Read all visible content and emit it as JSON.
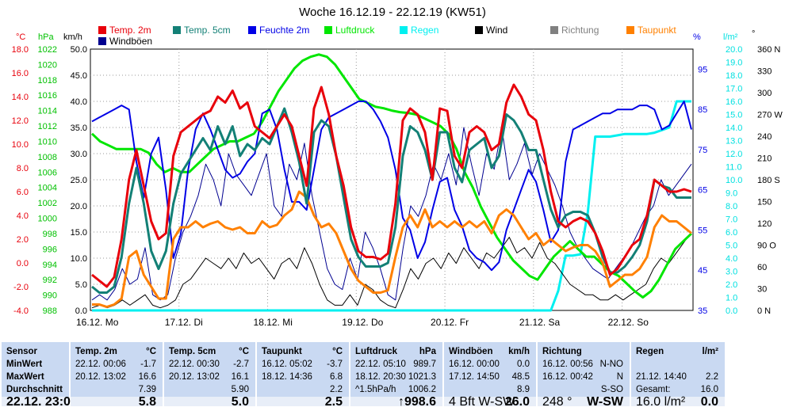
{
  "chart_data": {
    "type": "line",
    "title": "Woche 16.12.19 - 22.12.19 (KW51)",
    "legend": [
      {
        "name": "Temp. 2m",
        "color": "#e8000b"
      },
      {
        "name": "Temp. 5cm",
        "color": "#138076"
      },
      {
        "name": "Feuchte 2m",
        "color": "#0000e6"
      },
      {
        "name": "Luftdruck",
        "color": "#00e600"
      },
      {
        "name": "Regen",
        "color": "#00f0f0"
      },
      {
        "name": "Wind",
        "color": "#000000"
      },
      {
        "name": "Richtung",
        "color": "#808080"
      },
      {
        "name": "Taupunkt",
        "color": "#ff8000"
      },
      {
        "name": "Windböen",
        "color": "#000090"
      }
    ],
    "xlabels": [
      "16.12. Mo",
      "17.12. Di",
      "18.12. Mi",
      "19.12. Do",
      "20.12. Fr",
      "21.12. Sa",
      "22.12. So"
    ],
    "axes": {
      "temp": {
        "unit": "°C",
        "min": -4,
        "max": 18,
        "ticks": [
          "18.0",
          "16.0",
          "14.0",
          "12.0",
          "10.0",
          "8.0",
          "6.0",
          "4.0",
          "2.0",
          "0.0",
          "-2.0",
          "-4.0"
        ],
        "color": "#e8000b"
      },
      "pressure": {
        "unit": "hPa",
        "min": 988,
        "max": 1022,
        "ticks": [
          "1022",
          "1020",
          "1018",
          "1016",
          "1014",
          "1012",
          "1010",
          "1008",
          "1006",
          "1004",
          "1002",
          "1000",
          "998",
          "996",
          "994",
          "992",
          "990",
          "988"
        ],
        "color": "#00c000"
      },
      "wind": {
        "unit": "km/h",
        "min": 0,
        "max": 50,
        "ticks": [
          "50.0",
          "45.0",
          "40.0",
          "35.0",
          "30.0",
          "25.0",
          "20.0",
          "15.0",
          "10.0",
          "5.0",
          "0.0"
        ],
        "color": "#000000"
      },
      "humidity": {
        "unit": "%",
        "min": 35,
        "max": 100,
        "ticks": [
          "95",
          "85",
          "75",
          "65",
          "55",
          "45",
          "35"
        ],
        "color": "#0000e6"
      },
      "rain": {
        "unit": "l/m²",
        "min": 0,
        "max": 20,
        "ticks": [
          "20.0",
          "19.0",
          "18.0",
          "17.0",
          "16.0",
          "15.0",
          "14.0",
          "13.0",
          "12.0",
          "11.0",
          "10.0",
          "9.0",
          "8.0",
          "7.0",
          "6.0",
          "5.0",
          "4.0",
          "3.0",
          "2.0",
          "1.0",
          "0.0"
        ],
        "color": "#00e0e0"
      },
      "direction": {
        "unit": "°",
        "min": 0,
        "max": 360,
        "ticks": [
          "360 N",
          "330",
          "300",
          "270 W",
          "240",
          "210",
          "180 S",
          "150",
          "120",
          "90 O",
          "60",
          "30",
          "0 N"
        ],
        "color": "#000000"
      }
    },
    "series": [
      {
        "name": "Temp. 2m",
        "axis": "temp",
        "color": "#e8000b",
        "values": [
          -1.0,
          -1.5,
          -2.0,
          -1.2,
          2.0,
          7.0,
          9.5,
          6.5,
          3.5,
          2.0,
          2.5,
          9.0,
          11.0,
          11.5,
          12.0,
          12.5,
          12.8,
          14.0,
          13.5,
          14.5,
          13.0,
          13.5,
          11.5,
          11.0,
          10.5,
          11.5,
          12.5,
          11.5,
          9.0,
          6.5,
          13.0,
          14.8,
          12.5,
          9.0,
          6.5,
          3.0,
          1.0,
          0.5,
          0.5,
          0.3,
          0.8,
          5.0,
          12.0,
          13.0,
          12.5,
          11.0,
          7.0,
          13.0,
          12.8,
          9.0,
          8.0,
          11.0,
          11.5,
          11.0,
          9.5,
          10.0,
          13.5,
          15.0,
          14.0,
          12.5,
          12.0,
          9.5,
          6.0,
          3.5,
          3.0,
          3.5,
          3.8,
          3.5,
          2.5,
          1.0,
          -1.0,
          -0.5,
          0.5,
          1.5,
          2.0,
          4.0,
          7.0,
          6.5,
          6.0,
          6.0,
          6.2,
          6.0
        ]
      },
      {
        "name": "Temp. 5cm",
        "axis": "temp",
        "color": "#138076",
        "values": [
          -2.0,
          -2.5,
          -2.5,
          -2.0,
          0.5,
          5.0,
          8.0,
          5.0,
          1.0,
          -0.5,
          1.0,
          5.0,
          7.5,
          8.5,
          9.5,
          10.5,
          9.5,
          11.5,
          10.0,
          11.5,
          9.0,
          10.0,
          9.5,
          10.5,
          10.0,
          11.5,
          13.0,
          11.0,
          8.5,
          5.0,
          11.0,
          12.0,
          11.5,
          9.0,
          5.5,
          2.0,
          0.5,
          -0.3,
          -0.3,
          -0.3,
          0.0,
          3.0,
          9.0,
          11.5,
          11.0,
          9.5,
          7.0,
          11.0,
          11.0,
          8.0,
          6.8,
          9.5,
          10.0,
          10.5,
          8.0,
          9.0,
          12.5,
          12.0,
          11.0,
          9.5,
          9.5,
          7.0,
          4.5,
          3.0,
          4.0,
          4.3,
          4.3,
          4.0,
          2.5,
          0.5,
          -0.8,
          -0.8,
          -0.3,
          0.5,
          1.5,
          3.5,
          7.0,
          6.5,
          6.3,
          5.5,
          5.5,
          5.5
        ]
      },
      {
        "name": "Taupunkt",
        "axis": "temp",
        "color": "#ff8000",
        "values": [
          -3.5,
          -3.5,
          -3.7,
          -3.5,
          -3.0,
          0.5,
          1.0,
          -1.0,
          -2.0,
          -3.0,
          -3.0,
          2.0,
          3.0,
          3.0,
          3.5,
          3.0,
          3.3,
          3.5,
          3.0,
          2.8,
          3.0,
          2.5,
          2.5,
          3.5,
          3.0,
          3.2,
          4.0,
          4.5,
          6.0,
          5.5,
          4.0,
          3.0,
          3.3,
          2.5,
          1.0,
          -0.5,
          -1.5,
          -2.0,
          -2.5,
          -2.5,
          -2.3,
          0.5,
          3.0,
          4.0,
          3.0,
          4.5,
          3.0,
          3.5,
          3.0,
          3.5,
          3.0,
          3.5,
          3.0,
          3.5,
          2.5,
          4.0,
          4.5,
          4.0,
          3.0,
          2.0,
          2.5,
          1.5,
          2.0,
          1.5,
          1.0,
          1.3,
          1.5,
          1.5,
          1.0,
          0.0,
          -2.0,
          -1.5,
          -1.0,
          -1.0,
          -0.5,
          0.5,
          3.0,
          4.0,
          3.5,
          3.5,
          3.0,
          2.5
        ]
      },
      {
        "name": "Feuchte 2m",
        "axis": "humidity",
        "color": "#0000e6",
        "values": [
          82,
          83,
          84,
          85,
          86,
          85,
          72,
          63,
          74,
          78,
          65,
          48,
          54,
          70,
          80,
          84,
          80,
          75,
          70,
          68,
          69,
          72,
          74,
          84,
          85,
          80,
          70,
          62,
          62,
          60,
          70,
          80,
          83,
          84,
          85,
          86,
          87,
          87,
          85,
          82,
          78,
          70,
          58,
          55,
          48,
          52,
          60,
          67,
          68,
          60,
          56,
          50,
          48,
          47,
          45,
          47,
          55,
          60,
          65,
          70,
          67,
          60,
          52,
          55,
          72,
          80,
          81,
          82,
          83,
          84,
          84,
          85,
          85,
          85,
          86,
          86,
          85,
          80,
          81,
          84,
          87,
          80
        ]
      },
      {
        "name": "Luftdruck",
        "axis": "pressure",
        "color": "#00e600",
        "values": [
          1011,
          1010,
          1009.5,
          1009,
          1009,
          1009,
          1009,
          1008.5,
          1007,
          1006,
          1006.5,
          1006,
          1006,
          1007,
          1008,
          1009,
          1009.5,
          1010,
          1010,
          1010.5,
          1011,
          1012.5,
          1014.5,
          1016.5,
          1018,
          1019.5,
          1020.5,
          1021,
          1021.3,
          1021,
          1020,
          1018.5,
          1017,
          1015.5,
          1015,
          1014.5,
          1014.3,
          1014,
          1013.8,
          1013.7,
          1013.5,
          1013,
          1012.5,
          1012,
          1011,
          1009,
          1006,
          1004,
          1001.5,
          999.5,
          997.5,
          996,
          994.5,
          993.5,
          992.5,
          992,
          993.5,
          995,
          996,
          997,
          996,
          995,
          995,
          994,
          993,
          992.5,
          991.5,
          990.5,
          989.7,
          990.5,
          992,
          994,
          996,
          997,
          998
        ]
      },
      {
        "name": "Wind",
        "axis": "wind",
        "color": "#000000",
        "values": [
          0.5,
          1,
          0.5,
          1,
          2,
          1,
          2,
          3,
          1,
          0.5,
          1,
          2,
          5,
          6,
          8,
          10,
          9,
          8,
          10,
          8,
          11,
          9,
          10,
          8,
          6,
          9,
          10,
          8,
          12,
          9,
          5,
          2,
          1,
          1,
          3,
          1,
          5,
          4,
          2,
          1,
          0.5,
          4,
          8,
          6,
          9,
          10,
          8,
          11,
          9,
          12,
          10,
          8,
          11,
          10,
          12,
          14,
          11,
          12,
          10,
          13,
          10,
          9,
          7,
          5,
          4,
          3,
          3,
          2,
          2,
          3,
          2,
          3,
          4,
          5,
          8,
          10,
          9,
          11,
          13,
          15
        ]
      },
      {
        "name": "Windböen",
        "axis": "wind",
        "color": "#000090",
        "values": [
          2,
          3,
          2,
          4,
          8,
          5,
          6,
          12,
          3,
          2,
          3,
          10,
          15,
          18,
          22,
          28,
          25,
          20,
          30,
          26,
          24,
          22,
          26,
          30,
          20,
          18,
          28,
          25,
          32,
          22,
          15,
          8,
          5,
          4,
          10,
          6,
          15,
          12,
          8,
          3,
          2,
          12,
          20,
          18,
          22,
          28,
          25,
          30,
          24,
          35,
          28,
          22,
          30,
          27,
          35,
          25,
          28,
          32,
          26,
          30,
          27,
          24,
          20,
          15,
          12,
          10,
          8,
          7,
          6,
          8,
          10,
          12,
          15,
          18,
          20,
          25,
          22,
          24,
          26,
          28
        ]
      },
      {
        "name": "Regen",
        "axis": "rain",
        "color": "#00f0f0",
        "values": [
          0,
          0,
          0,
          0,
          0,
          0,
          0,
          0,
          0,
          0,
          0,
          0,
          0,
          0,
          0,
          0,
          0,
          0,
          0,
          0,
          0,
          0,
          0,
          0,
          0,
          0,
          0,
          0,
          0,
          0,
          0,
          0,
          0,
          0,
          0,
          0,
          0,
          0,
          0,
          0,
          0,
          0,
          0,
          0,
          0,
          0,
          0,
          0,
          0,
          0,
          0,
          0,
          0,
          0,
          0,
          0,
          0,
          0,
          0,
          0,
          0,
          0,
          0,
          1.5,
          4.2,
          4.2,
          4.3,
          7.5,
          13.3,
          13.3,
          13.3,
          13.4,
          13.5,
          13.5,
          13.5,
          13.5,
          13.6,
          13.8,
          14.0,
          16.0,
          16.0,
          16.0
        ]
      }
    ]
  },
  "stats": {
    "row_labels": [
      "Sensor",
      "MinWert",
      "MaxWert",
      "Durchschnitt",
      "22.12. 23:00"
    ],
    "columns": [
      {
        "name": "Temp. 2m",
        "unit": "°C",
        "min_time": "22.12.  00:06",
        "min_val": "-1.7",
        "max_time": "20.12.  13:02",
        "max_val": "16.6",
        "avg_label": "",
        "avg_val": "7.39",
        "cur_label": "",
        "cur_val": "5.8"
      },
      {
        "name": "Temp. 5cm",
        "unit": "°C",
        "min_time": "22.12.  00:30",
        "min_val": "-2.7",
        "max_time": "20.12.  13:02",
        "max_val": "16.1",
        "avg_label": "",
        "avg_val": "5.90",
        "cur_label": "",
        "cur_val": "5.0"
      },
      {
        "name": "Taupunkt",
        "unit": "°C",
        "min_time": "16.12.  05:02",
        "min_val": "-3.7",
        "max_time": "18.12.  14:36",
        "max_val": "6.8",
        "avg_label": "",
        "avg_val": "2.2",
        "cur_label": "",
        "cur_val": "2.5"
      },
      {
        "name": "Luftdruck",
        "unit": "hPa",
        "min_time": "22.12.  05:10",
        "min_val": "989.7",
        "max_time": "18.12.  20:30",
        "max_val": "1021.3",
        "avg_label": "^1.5hPa/h",
        "avg_val": "1006.2",
        "cur_label": "",
        "cur_val": "↑998.6"
      },
      {
        "name": "Windböen",
        "unit": "km/h",
        "min_time": "16.12.  00:00",
        "min_val": "0.0",
        "max_time": "17.12.  14:50",
        "max_val": "48.5",
        "avg_label": "",
        "avg_val": "8.9",
        "cur_label": "4 Bft W-SW",
        "cur_val": "26.0"
      },
      {
        "name": "Richtung",
        "unit": "",
        "min_time": "16.12.  00:56",
        "min_val": "N-NO",
        "max_time": "16.12.  00:42",
        "max_val": "N",
        "avg_label": "",
        "avg_val": "S-SO",
        "cur_label": "248 °",
        "cur_val": "W-SW"
      },
      {
        "name": "Regen",
        "unit": "l/m²",
        "min_time": "",
        "min_val": "",
        "max_time": "21.12.  14:40",
        "max_val": "2.2",
        "avg_label": "Gesamt:",
        "avg_val": "16.0",
        "cur_label": "16.0 l/m²",
        "cur_val": "0.0"
      }
    ]
  }
}
